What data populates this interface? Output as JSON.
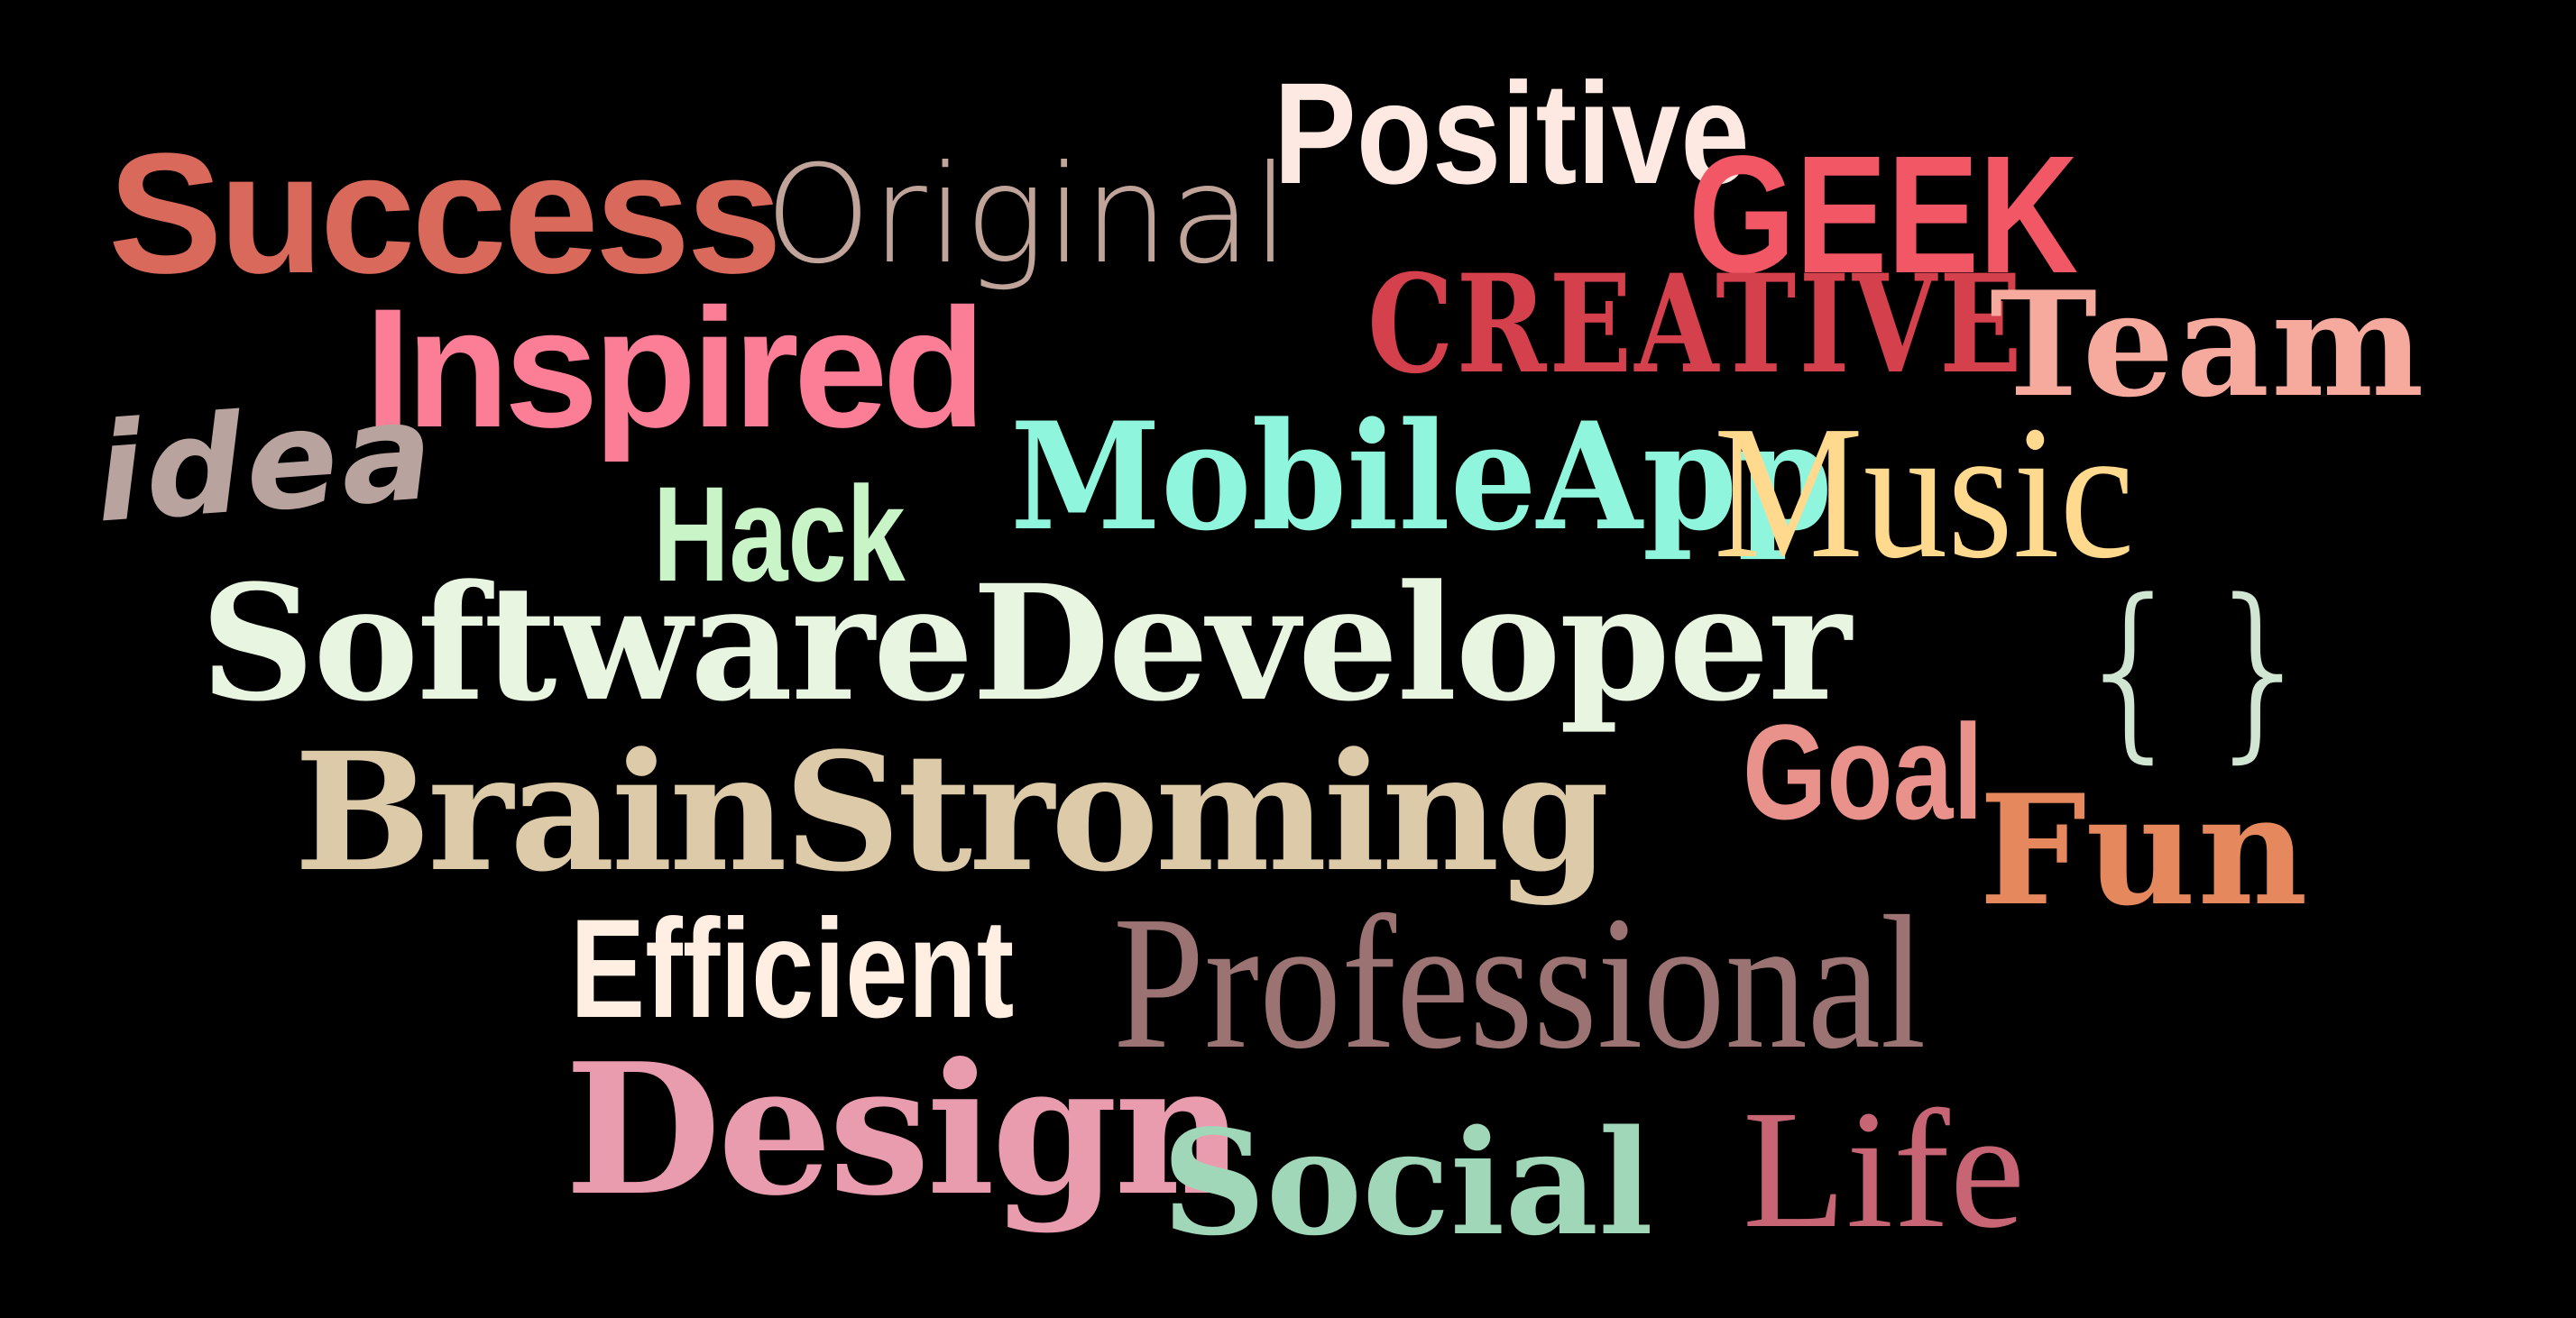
{
  "word_cloud": {
    "background_color": "#000000",
    "words": [
      {
        "id": "success",
        "text": "Success",
        "color": "#d9695a"
      },
      {
        "id": "original",
        "text": "Original",
        "color": "#c0a49a"
      },
      {
        "id": "positive",
        "text": "Positive",
        "color": "#fde9e2"
      },
      {
        "id": "geek",
        "text": "GEEK",
        "color": "#f25765"
      },
      {
        "id": "creative",
        "text": "CREATIVE",
        "color": "#d4404b"
      },
      {
        "id": "team",
        "text": "Team",
        "color": "#f6aa9d"
      },
      {
        "id": "inspired",
        "text": "Inspired",
        "color": "#fb7e96"
      },
      {
        "id": "idea",
        "text": "idea",
        "color": "#b9a39e"
      },
      {
        "id": "mobileapp",
        "text": "MobileApp",
        "color": "#8ff6dd"
      },
      {
        "id": "music",
        "text": "Music",
        "color": "#fed98e"
      },
      {
        "id": "hack",
        "text": "Hack",
        "color": "#c8f4c7"
      },
      {
        "id": "software",
        "text": "SoftwareDeveloper",
        "color": "#e8f5e1"
      },
      {
        "id": "braces",
        "text": "{}",
        "color": "#d1e5d3"
      },
      {
        "id": "brain",
        "text": "BrainStroming",
        "color": "#dccaa8"
      },
      {
        "id": "goal",
        "text": "Goal",
        "color": "#e9928b"
      },
      {
        "id": "fun",
        "text": "Fun",
        "color": "#e5885d"
      },
      {
        "id": "efficient",
        "text": "Efficient",
        "color": "#ffeee2"
      },
      {
        "id": "prof",
        "text": "Professional",
        "color": "#9c7373"
      },
      {
        "id": "design",
        "text": "Design",
        "color": "#e99cad"
      },
      {
        "id": "social",
        "text": "Social",
        "color": "#9fd7b8"
      },
      {
        "id": "life",
        "text": "Life",
        "color": "#c86574"
      }
    ]
  }
}
